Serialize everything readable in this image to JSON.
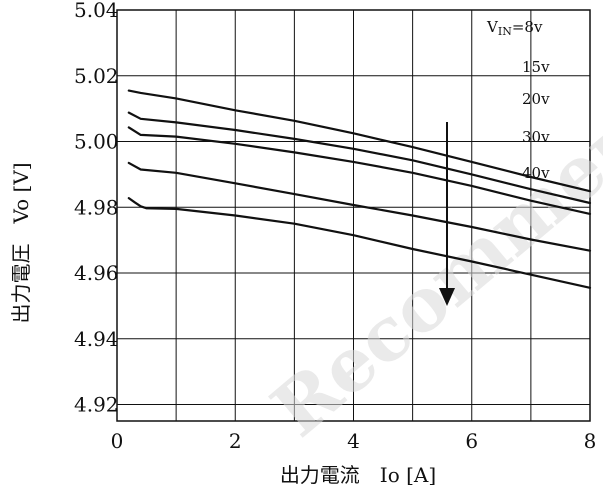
{
  "chart_data": {
    "type": "line",
    "xlabel": "出力電流　Io [A]",
    "ylabel": "出力電圧　Vo [V]",
    "xlim": [
      0,
      8
    ],
    "ylim": [
      4.915,
      5.04
    ],
    "x_ticks": [
      "0",
      "2",
      "4",
      "6",
      "8"
    ],
    "y_ticks": [
      "5.04",
      "5.02",
      "5.00",
      "4.98",
      "4.96",
      "4.94",
      "4.92"
    ],
    "grid": true,
    "legend_title": "V",
    "legend_title_sub": "IN",
    "legend_title_suffix": "=8v",
    "legend_labels": [
      "15v",
      "20v",
      "30v",
      "40v"
    ],
    "arrow": "down",
    "series": [
      {
        "name": "8v",
        "x": [
          0.2,
          0.4,
          1,
          2,
          3,
          4,
          5,
          6,
          7,
          8
        ],
        "y": [
          5.0155,
          5.0148,
          5.0131,
          5.0095,
          5.0063,
          5.0025,
          4.9983,
          4.9938,
          4.9892,
          4.9849
        ]
      },
      {
        "name": "15v",
        "x": [
          0.2,
          0.4,
          1,
          2,
          3,
          4,
          5,
          6,
          7,
          8
        ],
        "y": [
          5.0088,
          5.0069,
          5.0058,
          5.0035,
          5.0008,
          4.9978,
          4.9943,
          4.99,
          4.9855,
          4.9813
        ]
      },
      {
        "name": "20v",
        "x": [
          0.2,
          0.4,
          1,
          2,
          3,
          4,
          5,
          6,
          7,
          8
        ],
        "y": [
          5.0043,
          5.002,
          5.0015,
          4.9993,
          4.9967,
          4.9938,
          4.9905,
          4.9865,
          4.982,
          4.978
        ]
      },
      {
        "name": "30v",
        "x": [
          0.2,
          0.4,
          1,
          2,
          3,
          4,
          5,
          6,
          7,
          8
        ],
        "y": [
          4.9935,
          4.9915,
          4.9905,
          4.9873,
          4.984,
          4.9807,
          4.9775,
          4.974,
          4.9702,
          4.9668
        ]
      },
      {
        "name": "40v",
        "x": [
          0.2,
          0.3,
          0.4,
          0.5,
          1,
          2,
          3,
          4,
          5,
          6,
          7,
          8
        ],
        "y": [
          4.9828,
          4.9815,
          4.9803,
          4.9797,
          4.9795,
          4.9775,
          4.975,
          4.9715,
          4.9673,
          4.9635,
          4.9595,
          4.9555
        ]
      }
    ]
  },
  "watermark": "Recommend",
  "colors": {
    "line": "#111111",
    "grid": "#111111",
    "watermark": "#d9d9d9"
  }
}
